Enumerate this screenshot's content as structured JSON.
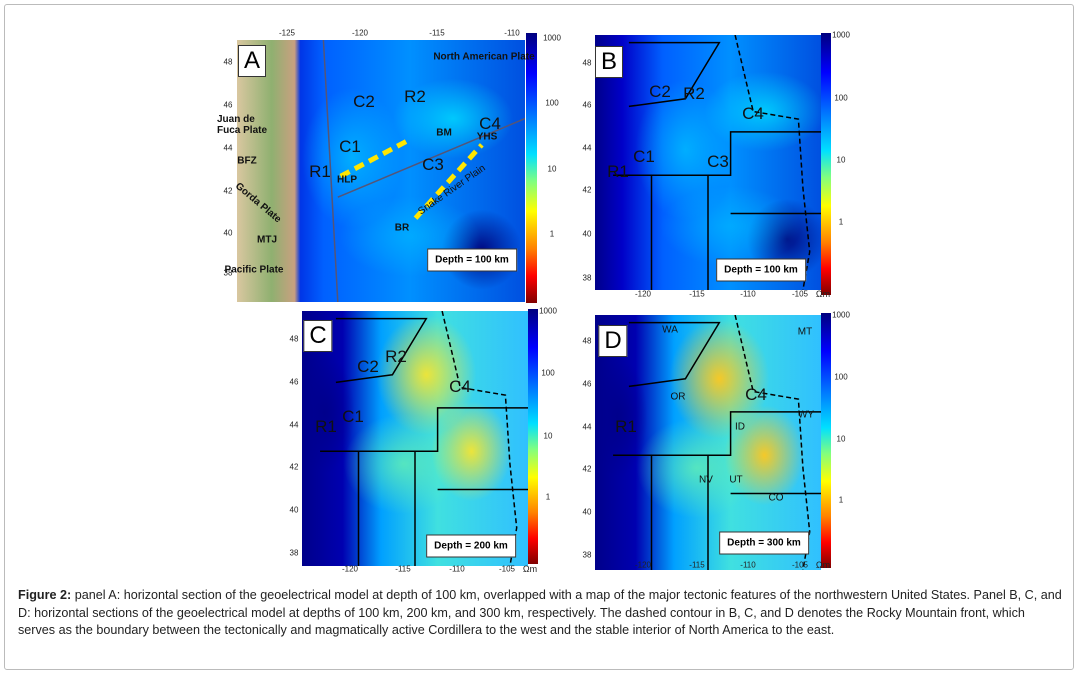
{
  "panels": [
    {
      "letter": "A",
      "lon_ticks": [
        "-125",
        "-120",
        "-115",
        "-110"
      ],
      "lat_ticks": [
        "48",
        "46",
        "44",
        "42",
        "40",
        "38"
      ],
      "colorbar_ticks": [
        "1000",
        "100",
        "10",
        "1"
      ],
      "depth": "Depth = 100 km",
      "labels": [
        "North American Plate",
        "Juan de Fuca Plate",
        "BFZ",
        "Gorda Plate",
        "MTJ",
        "Pacific Plate",
        "R1",
        "C1",
        "C2",
        "R2",
        "C3",
        "C4",
        "HLP",
        "BM",
        "YHS",
        "Snake River Plain",
        "BR"
      ]
    },
    {
      "letter": "B",
      "lon_ticks": [
        "-120",
        "-115",
        "-110",
        "-105"
      ],
      "unit": "Ωm",
      "lat_ticks": [
        "48",
        "46",
        "44",
        "42",
        "40",
        "38"
      ],
      "colorbar_ticks": [
        "1000",
        "100",
        "10",
        "1"
      ],
      "depth": "Depth = 100 km",
      "labels": [
        "R1",
        "C1",
        "C2",
        "R2",
        "C3",
        "C4"
      ]
    },
    {
      "letter": "C",
      "lon_ticks": [
        "-120",
        "-115",
        "-110",
        "-105"
      ],
      "unit": "Ωm",
      "lat_ticks": [
        "48",
        "46",
        "44",
        "42",
        "40",
        "38"
      ],
      "colorbar_ticks": [
        "1000",
        "100",
        "10",
        "1"
      ],
      "depth": "Depth = 200 km",
      "labels": [
        "R1",
        "C1",
        "C2",
        "R2",
        "C4"
      ]
    },
    {
      "letter": "D",
      "lon_ticks": [
        "-120",
        "-115",
        "-110",
        "-105"
      ],
      "unit": "Ωm",
      "lat_ticks": [
        "48",
        "46",
        "44",
        "42",
        "40",
        "38"
      ],
      "colorbar_ticks": [
        "1000",
        "100",
        "10",
        "1"
      ],
      "depth": "Depth = 300 km",
      "labels": [
        "WA",
        "MT",
        "OR",
        "ID",
        "WY",
        "NV",
        "UT",
        "CO",
        "R1",
        "C4"
      ]
    }
  ],
  "caption": {
    "lead": "Figure 2:",
    "text": "panel A: horizontal section of the geoelectrical model at depth of 100 km, overlapped with a map of the major tectonic features of the northwestern United States. Panel B, C, and D: horizontal sections of the geoelectrical model at depths of 100 km, 200 km, and 300 km, respectively. The dashed contour in B, C, and D denotes the Rocky Mountain front, which serves as the boundary between the tectonically and magmatically active Cordillera to the west and the stable interior of North America to the east."
  }
}
